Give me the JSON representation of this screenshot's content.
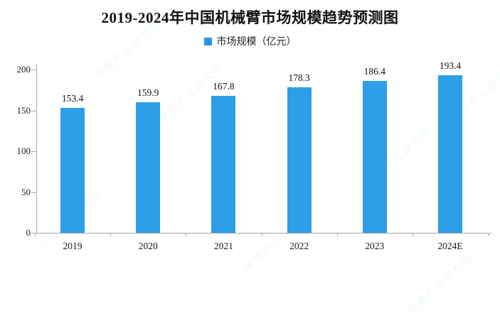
{
  "page": {
    "background": "#ffffff"
  },
  "chart_data": {
    "type": "bar",
    "title": "2019-2024年中国机械臂市场规模趋势预测图",
    "legend": [
      {
        "label": "市场规模（亿元）",
        "color": "#2b93e3",
        "position": "top-center"
      }
    ],
    "categories": [
      "2019",
      "2020",
      "2021",
      "2022",
      "2023",
      "2024E"
    ],
    "series": [
      {
        "name": "市场规模（亿元）",
        "values": [
          153.4,
          159.9,
          167.8,
          178.3,
          186.4,
          193.4
        ]
      }
    ],
    "data_labels": [
      "153.4",
      "159.9",
      "167.8",
      "178.3",
      "186.4",
      "193.4"
    ],
    "xlabel": "",
    "ylabel": "",
    "ylim": [
      0,
      200
    ],
    "yticks": [
      0,
      50,
      100,
      150,
      200
    ],
    "grid": false,
    "bar_color": "#2d9ee8"
  },
  "watermark": {
    "text": "中商产业研究院"
  }
}
